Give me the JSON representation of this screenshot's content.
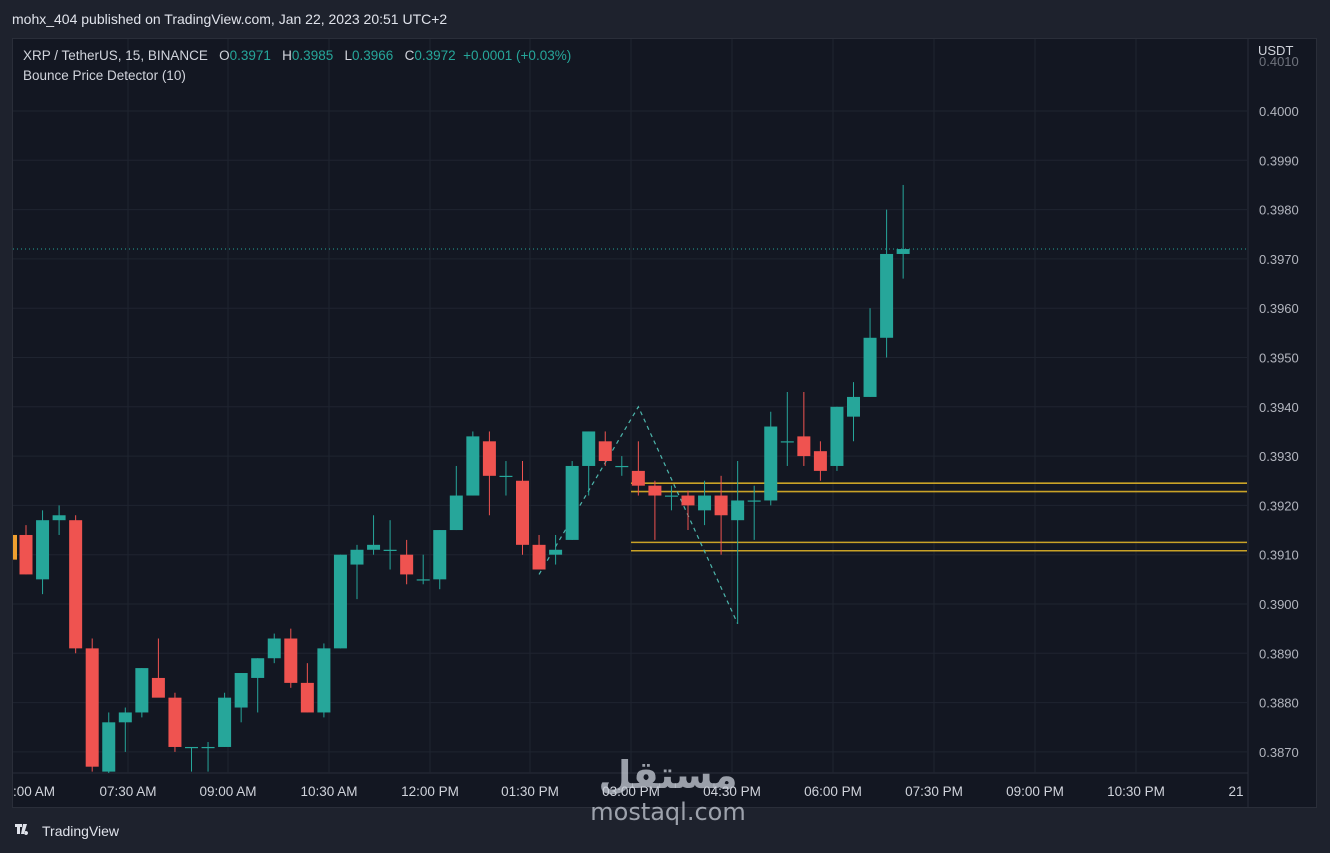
{
  "header": {
    "published_line": "mohx_404 published on TradingView.com, Jan 22, 2023 20:51 UTC+2"
  },
  "legend": {
    "symbol": "XRP / TetherUS, 15, BINANCE",
    "open_label": "O",
    "open": "0.3971",
    "high_label": "H",
    "high": "0.3985",
    "low_label": "L",
    "low": "0.3966",
    "close_label": "C",
    "close": "0.3972",
    "change": "+0.0001 (+0.03%)",
    "indicator": "Bounce Price Detector (10)"
  },
  "price_axis": {
    "currency": "USDT",
    "top_partial_label": "0.4010",
    "ticks": [
      "0.4000",
      "0.3990",
      "0.3980",
      "0.3970",
      "0.3960",
      "0.3950",
      "0.3940",
      "0.3930",
      "0.3920",
      "0.3910",
      "0.3900",
      "0.3890",
      "0.3880",
      "0.3870"
    ]
  },
  "time_axis": {
    "ticks": [
      ":00 AM",
      "07:30 AM",
      "09:00 AM",
      "10:30 AM",
      "12:00 PM",
      "01:30 PM",
      "03:00 PM",
      "04:30 PM",
      "06:00 PM",
      "07:30 PM",
      "09:00 PM",
      "10:30 PM",
      "21"
    ]
  },
  "colors": {
    "up": "#26a69a",
    "down": "#ef5350",
    "level_lines": "#c9a227",
    "last_price_line": "#26a69a",
    "zigzag": "#4db6ac"
  },
  "footer": {
    "brand": "TradingView",
    "logo_icon": "tradingview-logo-icon"
  },
  "watermark": {
    "arabic": "مستقل",
    "latin": "mostaql.com"
  },
  "chart_data": {
    "type": "candlestick",
    "symbol": "XRP / TetherUS",
    "interval": "15",
    "exchange": "BINANCE",
    "ylim": [
      0.3866,
      0.4012
    ],
    "last_price": 0.3972,
    "support_resistance_levels": [
      0.39245,
      0.39228,
      0.39125,
      0.39108
    ],
    "candles": [
      {
        "o": 0.3914,
        "h": 0.3916,
        "l": 0.3906,
        "c": 0.3906
      },
      {
        "o": 0.3905,
        "h": 0.3919,
        "l": 0.3902,
        "c": 0.3917
      },
      {
        "o": 0.3917,
        "h": 0.392,
        "l": 0.3914,
        "c": 0.3918
      },
      {
        "o": 0.3917,
        "h": 0.3918,
        "l": 0.389,
        "c": 0.3891
      },
      {
        "o": 0.3891,
        "h": 0.3893,
        "l": 0.3866,
        "c": 0.3867
      },
      {
        "o": 0.3866,
        "h": 0.3878,
        "l": 0.3865,
        "c": 0.3876
      },
      {
        "o": 0.3876,
        "h": 0.3879,
        "l": 0.387,
        "c": 0.3878
      },
      {
        "o": 0.3878,
        "h": 0.3887,
        "l": 0.3877,
        "c": 0.3887
      },
      {
        "o": 0.3885,
        "h": 0.3893,
        "l": 0.3882,
        "c": 0.3881
      },
      {
        "o": 0.3881,
        "h": 0.3882,
        "l": 0.387,
        "c": 0.3871
      },
      {
        "o": 0.3871,
        "h": 0.3871,
        "l": 0.3866,
        "c": 0.3871
      },
      {
        "o": 0.3871,
        "h": 0.3872,
        "l": 0.3866,
        "c": 0.3871
      },
      {
        "o": 0.3871,
        "h": 0.3882,
        "l": 0.3871,
        "c": 0.3881
      },
      {
        "o": 0.3879,
        "h": 0.3886,
        "l": 0.3876,
        "c": 0.3886
      },
      {
        "o": 0.3885,
        "h": 0.3889,
        "l": 0.3878,
        "c": 0.3889
      },
      {
        "o": 0.3889,
        "h": 0.3894,
        "l": 0.3888,
        "c": 0.3893
      },
      {
        "o": 0.3893,
        "h": 0.3895,
        "l": 0.3883,
        "c": 0.3884
      },
      {
        "o": 0.3884,
        "h": 0.3888,
        "l": 0.3878,
        "c": 0.3878
      },
      {
        "o": 0.3878,
        "h": 0.3892,
        "l": 0.3877,
        "c": 0.3891
      },
      {
        "o": 0.3891,
        "h": 0.391,
        "l": 0.3891,
        "c": 0.391
      },
      {
        "o": 0.3908,
        "h": 0.3912,
        "l": 0.3901,
        "c": 0.3911
      },
      {
        "o": 0.3911,
        "h": 0.3918,
        "l": 0.391,
        "c": 0.3912
      },
      {
        "o": 0.3911,
        "h": 0.3917,
        "l": 0.3907,
        "c": 0.3911
      },
      {
        "o": 0.391,
        "h": 0.3913,
        "l": 0.3904,
        "c": 0.3906
      },
      {
        "o": 0.3905,
        "h": 0.391,
        "l": 0.3904,
        "c": 0.3905
      },
      {
        "o": 0.3905,
        "h": 0.3915,
        "l": 0.3903,
        "c": 0.3915
      },
      {
        "o": 0.3915,
        "h": 0.3928,
        "l": 0.3915,
        "c": 0.3922
      },
      {
        "o": 0.3922,
        "h": 0.3935,
        "l": 0.3922,
        "c": 0.3934
      },
      {
        "o": 0.3933,
        "h": 0.3935,
        "l": 0.3918,
        "c": 0.3926
      },
      {
        "o": 0.3926,
        "h": 0.3929,
        "l": 0.3922,
        "c": 0.3926
      },
      {
        "o": 0.3925,
        "h": 0.3929,
        "l": 0.391,
        "c": 0.3912
      },
      {
        "o": 0.3912,
        "h": 0.3914,
        "l": 0.3907,
        "c": 0.3907
      },
      {
        "o": 0.391,
        "h": 0.3914,
        "l": 0.3908,
        "c": 0.3911
      },
      {
        "o": 0.3913,
        "h": 0.3929,
        "l": 0.3913,
        "c": 0.3928
      },
      {
        "o": 0.3928,
        "h": 0.3935,
        "l": 0.3922,
        "c": 0.3935
      },
      {
        "o": 0.3933,
        "h": 0.3935,
        "l": 0.3928,
        "c": 0.3929
      },
      {
        "o": 0.3928,
        "h": 0.393,
        "l": 0.3926,
        "c": 0.3928
      },
      {
        "o": 0.3927,
        "h": 0.3933,
        "l": 0.3922,
        "c": 0.3924
      },
      {
        "o": 0.3924,
        "h": 0.3925,
        "l": 0.3913,
        "c": 0.3922
      },
      {
        "o": 0.3922,
        "h": 0.3924,
        "l": 0.3919,
        "c": 0.3922
      },
      {
        "o": 0.3922,
        "h": 0.3923,
        "l": 0.3915,
        "c": 0.392
      },
      {
        "o": 0.3919,
        "h": 0.3925,
        "l": 0.3916,
        "c": 0.3922
      },
      {
        "o": 0.3922,
        "h": 0.3926,
        "l": 0.391,
        "c": 0.3918
      },
      {
        "o": 0.3917,
        "h": 0.3929,
        "l": 0.3896,
        "c": 0.3921
      },
      {
        "o": 0.3921,
        "h": 0.3924,
        "l": 0.3913,
        "c": 0.3921
      },
      {
        "o": 0.3921,
        "h": 0.3939,
        "l": 0.392,
        "c": 0.3936
      },
      {
        "o": 0.3933,
        "h": 0.3943,
        "l": 0.3928,
        "c": 0.3933
      },
      {
        "o": 0.3934,
        "h": 0.3943,
        "l": 0.3928,
        "c": 0.393
      },
      {
        "o": 0.3931,
        "h": 0.3933,
        "l": 0.3925,
        "c": 0.3927
      },
      {
        "o": 0.3928,
        "h": 0.394,
        "l": 0.3927,
        "c": 0.394
      },
      {
        "o": 0.3938,
        "h": 0.3945,
        "l": 0.3933,
        "c": 0.3942
      },
      {
        "o": 0.3942,
        "h": 0.396,
        "l": 0.3942,
        "c": 0.3954
      },
      {
        "o": 0.3954,
        "h": 0.398,
        "l": 0.395,
        "c": 0.3971
      },
      {
        "o": 0.3971,
        "h": 0.3985,
        "l": 0.3966,
        "c": 0.3972
      }
    ],
    "zigzag": [
      {
        "i": 31,
        "y": 0.3906
      },
      {
        "i": 37,
        "y": 0.394
      },
      {
        "i": 43,
        "y": 0.3896
      }
    ]
  }
}
